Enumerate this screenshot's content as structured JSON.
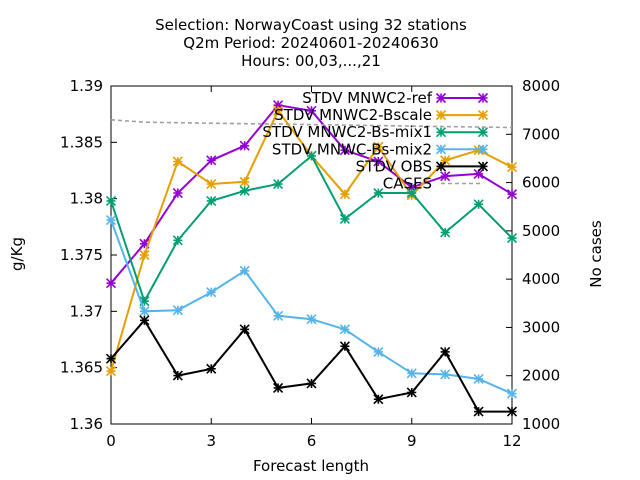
{
  "chart_data": {
    "type": "line",
    "title_lines": [
      "Selection: NorwayCoast using    32 stations",
      "Q2m   Period: 20240601-20240630",
      "Hours: 00,03,...,21"
    ],
    "xlabel": "Forecast length",
    "ylabel": "g/Kg",
    "y2label": "No cases",
    "x": [
      0,
      1,
      2,
      3,
      4,
      5,
      6,
      7,
      8,
      9,
      10,
      11,
      12
    ],
    "xlim": [
      0,
      12
    ],
    "ylim": [
      1.36,
      1.39
    ],
    "y2lim": [
      1000,
      8000
    ],
    "xticks": [
      "0",
      "3",
      "6",
      "9",
      "12"
    ],
    "xtick_values": [
      0,
      3,
      6,
      9,
      12
    ],
    "yticks": [
      "1.36",
      "1.365",
      "1.37",
      "1.375",
      "1.38",
      "1.385",
      "1.39"
    ],
    "ytick_values": [
      1.36,
      1.365,
      1.37,
      1.375,
      1.38,
      1.385,
      1.39
    ],
    "y2ticks": [
      "1000",
      "2000",
      "3000",
      "4000",
      "5000",
      "6000",
      "7000",
      "8000"
    ],
    "y2tick_values": [
      1000,
      2000,
      3000,
      4000,
      5000,
      6000,
      7000,
      8000
    ],
    "legend_position": "top-right",
    "series": [
      {
        "name": "STDV MNWC2-ref",
        "color": "#9400d3",
        "axis": "y",
        "values": [
          1.3725,
          1.376,
          1.3805,
          1.3834,
          1.3847,
          1.3883,
          1.3878,
          1.3843,
          1.3833,
          1.381,
          1.382,
          1.3822,
          1.3804
        ]
      },
      {
        "name": "STDV MNWC2-Bscale",
        "color": "#e69f00",
        "axis": "y",
        "values": [
          1.3647,
          1.375,
          1.3833,
          1.3813,
          1.3815,
          1.3878,
          1.3838,
          1.3804,
          1.3846,
          1.3803,
          1.3834,
          1.3843,
          1.3828
        ]
      },
      {
        "name": "STDV MNWC2-Bs-mix1",
        "color": "#009e73",
        "axis": "y",
        "values": [
          1.3798,
          1.3709,
          1.3763,
          1.3798,
          1.3807,
          1.3813,
          1.3838,
          1.3782,
          1.3805,
          1.3805,
          1.377,
          1.3795,
          1.3765
        ]
      },
      {
        "name": "STDV MNWC-Bs-mix2",
        "color": "#56b4e9",
        "axis": "y",
        "values": [
          1.3781,
          1.37,
          1.3701,
          1.3717,
          1.3736,
          1.3696,
          1.3693,
          1.3684,
          1.3664,
          1.3645,
          1.3644,
          1.364,
          1.3627
        ]
      },
      {
        "name": "STDV OBS",
        "color": "#000000",
        "axis": "y",
        "values": [
          1.3658,
          1.3692,
          1.3643,
          1.3649,
          1.3684,
          1.3632,
          1.3636,
          1.3669,
          1.3622,
          1.3628,
          1.3664,
          1.3611,
          1.3611
        ]
      },
      {
        "name": "CASES",
        "color": "#a0a0a0",
        "axis": "y2",
        "dashed": true,
        "values": [
          7300,
          7250,
          7240,
          7230,
          7220,
          7210,
          7200,
          7190,
          7180,
          7170,
          7160,
          7150,
          7140
        ]
      }
    ]
  }
}
